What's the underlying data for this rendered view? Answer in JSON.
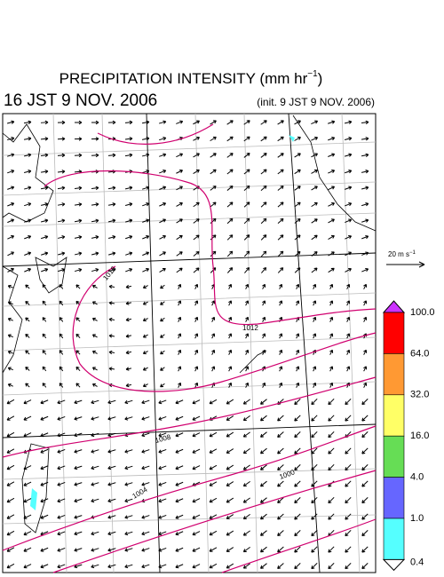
{
  "header": {
    "title": "PRECIPITATION INTENSITY (mm hr",
    "title_exp": "−1",
    "title_end": ")",
    "valid_time": "16 JST 9 NOV. 2006",
    "init_time": "(init. 9 JST 9 NOV. 2006)"
  },
  "vector_key": {
    "label": "20 m s",
    "exp": "−1"
  },
  "contour_labels": [
    "1016",
    "1012",
    "1008",
    "1004",
    "1000"
  ],
  "colorbar": {
    "levels": [
      {
        "label": "100.0",
        "color": "#ff0000"
      },
      {
        "label": "64.0",
        "color": "#ff9933"
      },
      {
        "label": "32.0",
        "color": "#ffff66"
      },
      {
        "label": "16.0",
        "color": "#66dd55"
      },
      {
        "label": "4.0",
        "color": "#6666ff"
      },
      {
        "label": "1.0",
        "color": "#55ffff"
      },
      {
        "label": "0.4",
        "color": "#ffffff"
      }
    ],
    "top_color": "#cc33ff"
  }
}
